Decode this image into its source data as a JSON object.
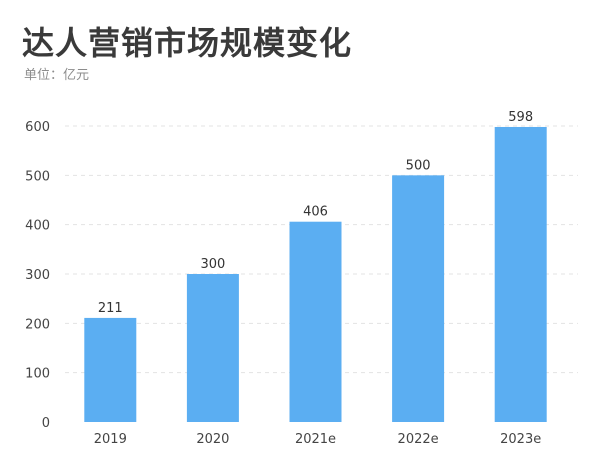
{
  "title": "达人营销市场规模变化",
  "subtitle": "单位：亿元",
  "colors": {
    "bar": "#5BAEF2",
    "grid": "#E3E3E3"
  },
  "chart_data": {
    "type": "bar",
    "title": "达人营销市场规模变化",
    "subtitle": "单位：亿元",
    "categories": [
      "2019",
      "2020",
      "2021e",
      "2022e",
      "2023e"
    ],
    "values": [
      211,
      300,
      406,
      500,
      598
    ],
    "data_labels": [
      "211",
      "300",
      "406",
      "500",
      "598"
    ],
    "ylim": [
      0,
      600
    ],
    "yticks": [
      0,
      100,
      200,
      300,
      400,
      500,
      600
    ],
    "ytick_labels": [
      "0",
      "100",
      "200",
      "300",
      "400",
      "500",
      "600"
    ],
    "xlabel": "",
    "ylabel": "",
    "grid": true,
    "legend": "none"
  }
}
